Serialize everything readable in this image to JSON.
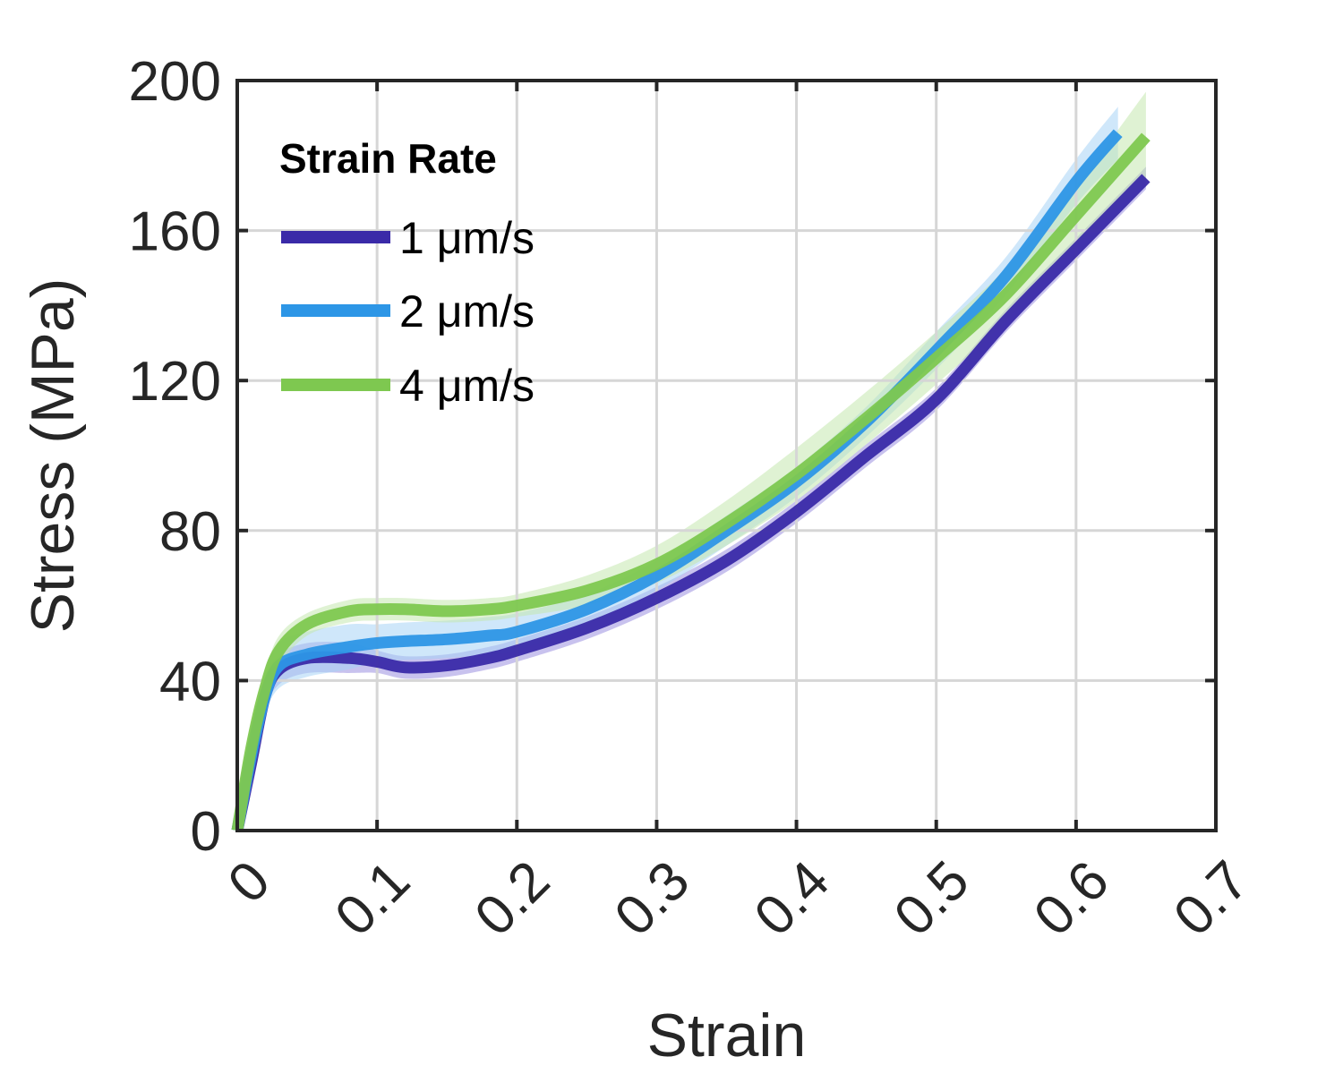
{
  "chart_data": {
    "type": "line",
    "title": "",
    "xlabel": "Strain",
    "ylabel": "Stress (MPa)",
    "xlim": [
      0,
      0.7
    ],
    "ylim": [
      0,
      200
    ],
    "xticks": [
      "0",
      "0.1",
      "0.2",
      "0.3",
      "0.4",
      "0.5",
      "0.6",
      "0.7"
    ],
    "yticks": [
      "0",
      "40",
      "80",
      "120",
      "160",
      "200"
    ],
    "grid": true,
    "legend": {
      "title": "Strain Rate",
      "placement": "top-left"
    },
    "series": [
      {
        "name": "1 μm/s",
        "color": "#3a2aa8",
        "band_color": "#9b8fe0",
        "x": [
          0.0,
          0.01,
          0.02,
          0.03,
          0.05,
          0.08,
          0.1,
          0.12,
          0.15,
          0.18,
          0.2,
          0.25,
          0.3,
          0.35,
          0.4,
          0.45,
          0.5,
          0.55,
          0.6,
          0.65
        ],
        "y": [
          0,
          18,
          36,
          43,
          46,
          46,
          45,
          43.5,
          44,
          46,
          48,
          54,
          62,
          72,
          85,
          100,
          115,
          136,
          155,
          174
        ],
        "band": [
          2,
          3,
          4,
          4,
          4,
          4,
          3,
          3,
          3,
          3,
          3,
          3,
          3,
          3,
          3,
          3,
          3,
          3,
          3,
          3
        ]
      },
      {
        "name": "2 μm/s",
        "color": "#2d96e6",
        "band_color": "#a8d4f5",
        "x": [
          0.0,
          0.01,
          0.02,
          0.03,
          0.05,
          0.08,
          0.1,
          0.12,
          0.15,
          0.18,
          0.2,
          0.25,
          0.3,
          0.35,
          0.4,
          0.45,
          0.5,
          0.55,
          0.6,
          0.63
        ],
        "y": [
          0,
          20,
          36,
          44,
          47,
          49,
          50,
          50.5,
          51,
          52,
          53,
          59,
          68,
          80,
          93,
          109,
          128,
          148,
          173,
          186
        ],
        "band": [
          2,
          3,
          5,
          6,
          6,
          6,
          5,
          5,
          5,
          5,
          5,
          4,
          4,
          4,
          4,
          4,
          5,
          5,
          6,
          7
        ]
      },
      {
        "name": "4 μm/s",
        "color": "#7ec850",
        "band_color": "#c4e8ae",
        "x": [
          0.0,
          0.01,
          0.02,
          0.03,
          0.05,
          0.08,
          0.1,
          0.12,
          0.15,
          0.18,
          0.2,
          0.25,
          0.3,
          0.35,
          0.4,
          0.45,
          0.5,
          0.55,
          0.6,
          0.65
        ],
        "y": [
          0,
          22,
          38,
          48,
          55,
          58.5,
          59,
          59,
          58.5,
          59,
          60,
          64,
          71,
          82,
          95,
          110,
          126,
          143,
          164,
          185
        ],
        "band": [
          2,
          3,
          4,
          4,
          3,
          3,
          3,
          3,
          3,
          3,
          3,
          4,
          5,
          6,
          7,
          7,
          7,
          7,
          8,
          12
        ]
      }
    ]
  }
}
